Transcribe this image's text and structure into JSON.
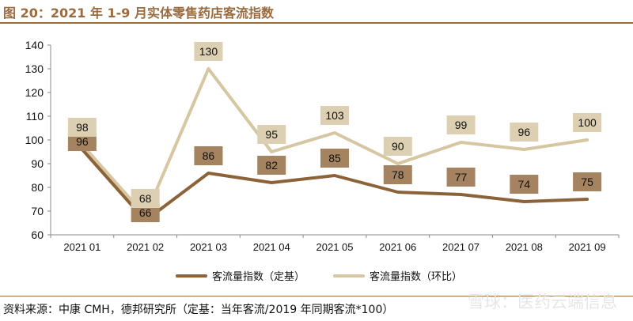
{
  "header": {
    "title": "图 20：2021 年 1-9 月实体零售药店客流指数"
  },
  "footer": {
    "source": "资料来源：中康 CMH，德邦研究所（定基：当年客流/2019 年同期客流*100）",
    "watermark": "雪球：医药云端信息"
  },
  "chart_data": {
    "type": "line",
    "categories": [
      "2021 01",
      "2021 02",
      "2021 03",
      "2021 04",
      "2021 05",
      "2021 06",
      "2021 07",
      "2021 08",
      "2021 09"
    ],
    "ylim": [
      60,
      140
    ],
    "yticks": [
      60,
      70,
      80,
      90,
      100,
      110,
      120,
      130,
      140
    ],
    "grid": false,
    "legend_position": "bottom",
    "series": [
      {
        "name": "客流量指数（定基）",
        "values": [
          96,
          66,
          86,
          82,
          85,
          78,
          77,
          74,
          75
        ],
        "color": "#8c6239",
        "label_bg": "#a58260"
      },
      {
        "name": "客流量指数（环比）",
        "values": [
          98,
          68,
          130,
          95,
          103,
          90,
          99,
          96,
          100
        ],
        "color": "#d6c6a1",
        "label_bg": "#ddd0b2"
      }
    ]
  }
}
